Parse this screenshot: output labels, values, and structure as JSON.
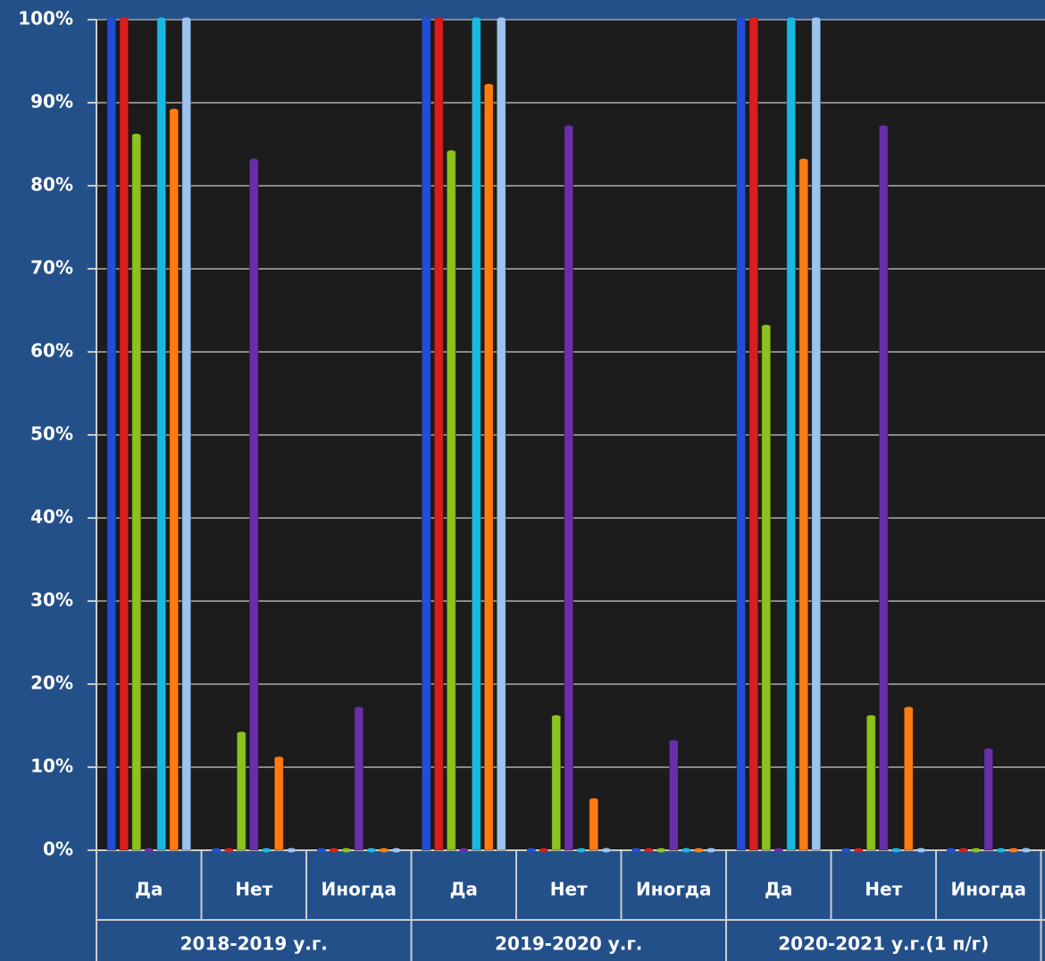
{
  "chart_data": {
    "type": "bar",
    "categories": [
      "Да",
      "Нет",
      "Иногда",
      "Да",
      "Нет",
      "Иногда",
      "Да",
      "Нет",
      "Иногда"
    ],
    "groups": [
      "2018-2019 у.г.",
      "2019-2020 у.г.",
      "2020-2021 у.г.(1 п/г)"
    ],
    "series": [
      {
        "color": "#1f4fd8",
        "values": [
          100,
          0,
          0,
          100,
          0,
          0,
          100,
          0,
          0
        ]
      },
      {
        "color": "#d81e1e",
        "values": [
          100,
          0,
          0,
          100,
          0,
          0,
          100,
          0,
          0
        ]
      },
      {
        "color": "#8cc21c",
        "values": [
          86,
          14,
          0,
          84,
          16,
          0,
          63,
          16,
          0
        ]
      },
      {
        "color": "#6a2fa8",
        "values": [
          0,
          83,
          17,
          0,
          87,
          13,
          0,
          87,
          12
        ]
      },
      {
        "color": "#19b8e0",
        "values": [
          100,
          0,
          0,
          100,
          0,
          0,
          100,
          0,
          0
        ]
      },
      {
        "color": "#ff7a10",
        "values": [
          89,
          11,
          0,
          92,
          6,
          0,
          83,
          17,
          0
        ]
      },
      {
        "color": "#9cc3f0",
        "values": [
          100,
          0,
          0,
          100,
          0,
          0,
          100,
          0,
          0
        ]
      }
    ],
    "ylim": [
      0,
      100
    ],
    "yticks": [
      {
        "value": 0,
        "label": "0%"
      },
      {
        "value": 10,
        "label": "10%"
      },
      {
        "value": 20,
        "label": "20%"
      },
      {
        "value": 30,
        "label": "30%"
      },
      {
        "value": 40,
        "label": "40%"
      },
      {
        "value": 50,
        "label": "50%"
      },
      {
        "value": 60,
        "label": "60%"
      },
      {
        "value": 70,
        "label": "70%"
      },
      {
        "value": 80,
        "label": "80%"
      },
      {
        "value": 90,
        "label": "90%"
      },
      {
        "value": 100,
        "label": "100%"
      }
    ],
    "grid": true
  }
}
